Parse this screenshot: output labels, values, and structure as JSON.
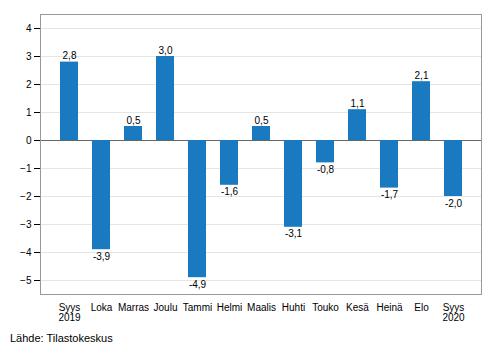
{
  "chart_data": {
    "type": "bar",
    "caption": "Lähde: Tilastokeskus",
    "categories": [
      "Syys\n2019",
      "Loka",
      "Marras",
      "Joulu",
      "Tammi",
      "Helmi",
      "Maalis",
      "Huhti",
      "Touko",
      "Kesä",
      "Heinä",
      "Elo",
      "Syys\n2020"
    ],
    "values": [
      2.8,
      -3.9,
      0.5,
      3.0,
      -4.9,
      -1.6,
      0.5,
      -3.1,
      -0.8,
      1.1,
      -1.7,
      2.1,
      -2.0
    ],
    "value_labels": [
      "2,8",
      "-3,9",
      "0,5",
      "3,0",
      "-4,9",
      "-1,6",
      "0,5",
      "-3,1",
      "-0,8",
      "1,1",
      "-1,7",
      "2,1",
      "-2,0"
    ],
    "color": "#1a7abf",
    "ylim": [
      -5.5,
      4.5
    ],
    "yticks": [
      -5,
      -4,
      -3,
      -2,
      -1,
      0,
      1,
      2,
      3,
      4
    ],
    "grid": true,
    "data_labels": true
  }
}
